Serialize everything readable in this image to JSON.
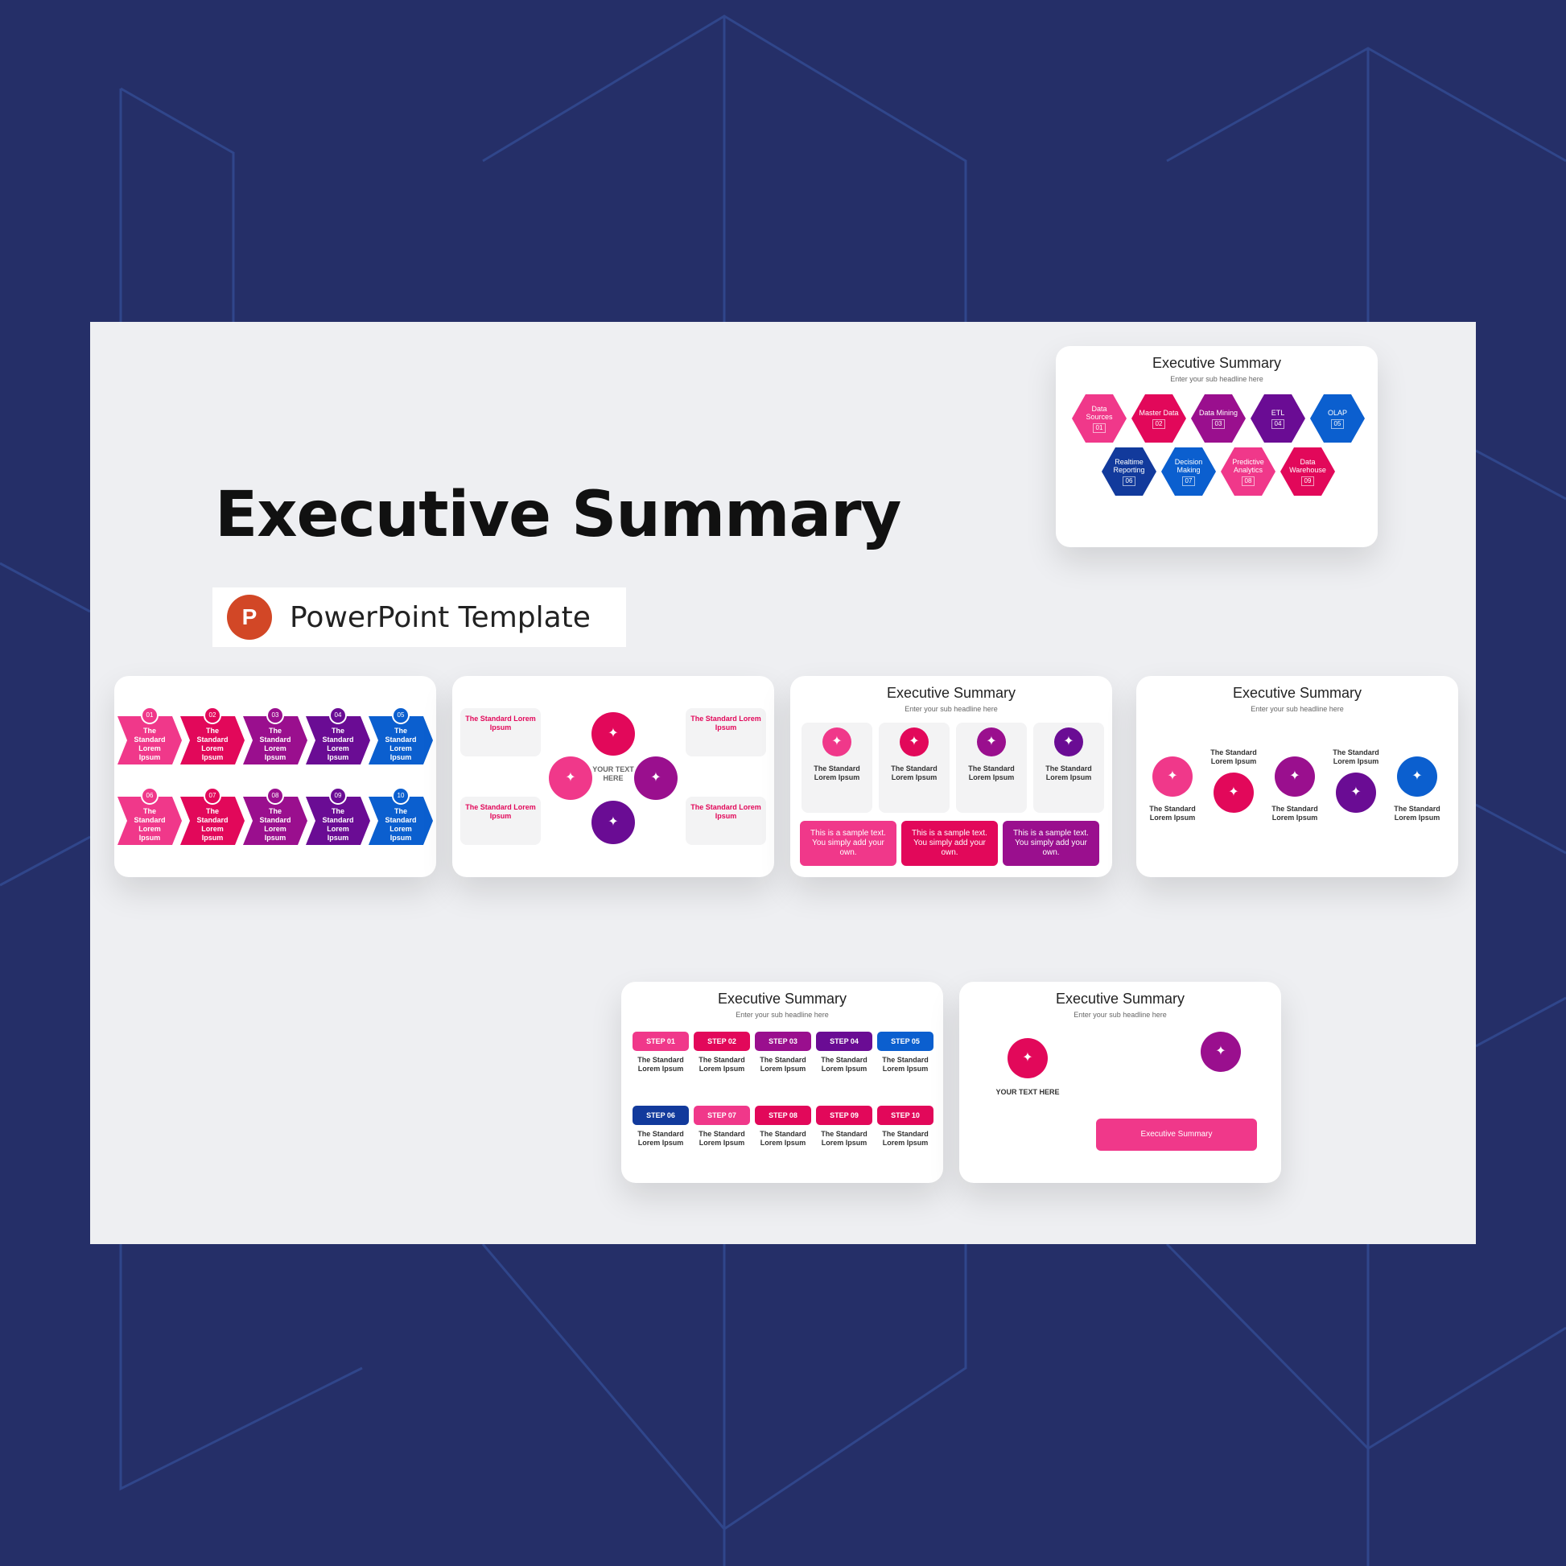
{
  "header": {
    "title": "Executive Summary",
    "badge_label": "PowerPoint Template",
    "badge_icon": "powerpoint-icon"
  },
  "colors": {
    "background": "#252f68",
    "panel": "#eeeff2",
    "pink": "#f0388a",
    "crimson": "#e2085a",
    "magenta": "#9a0f8e",
    "purple": "#6a0c94",
    "blue": "#0b5fcf",
    "navy": "#123a9c"
  },
  "slide_common": {
    "title": "Executive Summary",
    "subtitle": "Enter your sub headline here",
    "item_label": "The Standard Lorem Ipsum",
    "sample_text": "This is a sample text. You simply add your own.",
    "your_text": "YOUR TEXT HERE"
  },
  "hex_items": [
    {
      "label": "Data Sources",
      "num": "01"
    },
    {
      "label": "Master Data",
      "num": "02"
    },
    {
      "label": "Data Mining",
      "num": "03"
    },
    {
      "label": "ETL",
      "num": "04"
    },
    {
      "label": "OLAP",
      "num": "05"
    },
    {
      "label": "Realtime Reporting",
      "num": "06"
    },
    {
      "label": "Decision Making",
      "num": "07"
    },
    {
      "label": "Predictive Analytics",
      "num": "08"
    },
    {
      "label": "Data Warehouse",
      "num": "09"
    }
  ],
  "steps": [
    "STEP 01",
    "STEP 02",
    "STEP 03",
    "STEP 04",
    "STEP 05",
    "STEP 06",
    "STEP 07",
    "STEP 08",
    "STEP 09",
    "STEP 10"
  ],
  "chevron_nums": [
    "01",
    "02",
    "03",
    "04",
    "05",
    "06",
    "07",
    "08",
    "09",
    "10"
  ]
}
